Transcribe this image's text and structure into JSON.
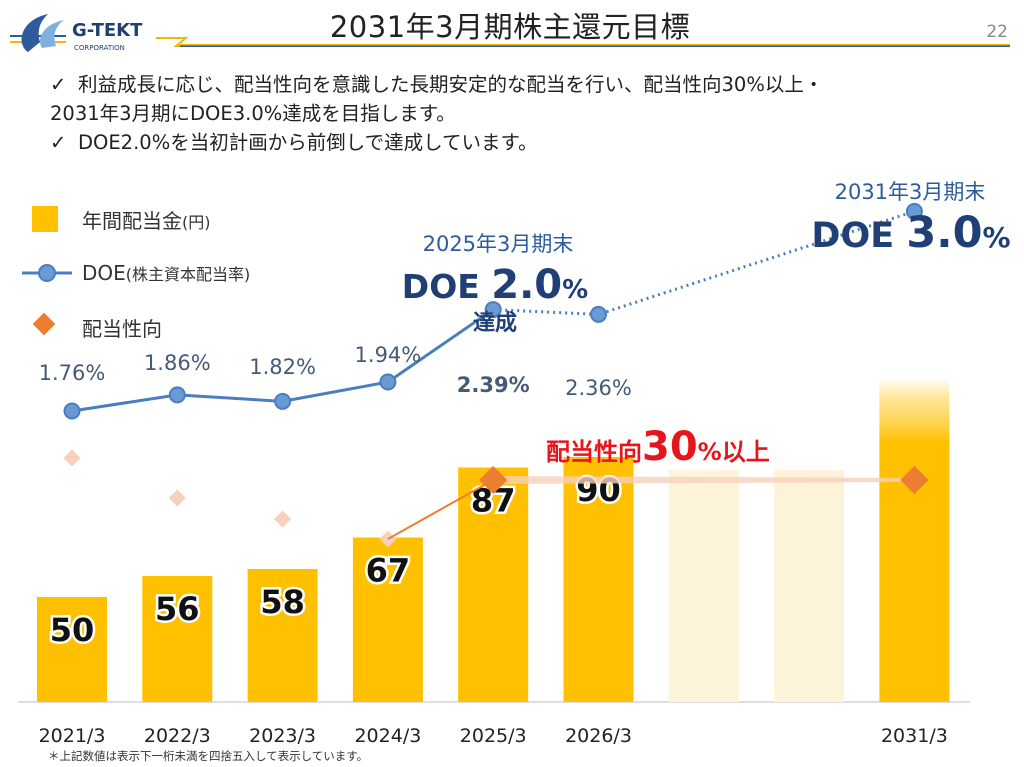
{
  "page": {
    "title": "2031年3月期株主還元目標",
    "page_number": "22",
    "logo_text": "G-TEKT",
    "logo_subtext": "CORPORATION"
  },
  "bullets": [
    "利益成長に応じ、配当性向を意識した長期安定的な配当を行い、配当性向30%以上・",
    "2031年3月期にDOE3.0%達成を目指します。",
    "DOE2.0%を当初計画から前倒しで達成しています。"
  ],
  "bullet_check": "✓",
  "legend": {
    "dividend": "年間配当金",
    "dividend_unit": "(円)",
    "doe": "DOE",
    "doe_note": "(株主資本配当率)",
    "payout": "配当性向"
  },
  "annotations": {
    "fy2025_date": "2025年3月期末",
    "fy2025_doe_prefix": "DOE ",
    "fy2025_doe_value": "2.0",
    "fy2025_doe_unit": "%",
    "fy2025_achieved": "達成",
    "fy2031_date": "2031年3月期末",
    "fy2031_doe_prefix": "DOE ",
    "fy2031_doe_value": "3.0",
    "fy2031_doe_unit": "%",
    "payout_prefix": "配当性向",
    "payout_value": "30",
    "payout_suffix": "%以上"
  },
  "footnote": "＊上記数値は表示下一桁未満を四捨五入して表示しています。",
  "colors": {
    "bar": "#ffc000",
    "bar_faint": "#fdf3d8",
    "doe_line": "#4a7ebf",
    "doe_marker": "#6a9ad3",
    "payout": "#ed7d31",
    "payout_faint": "#f8d0bb",
    "payout_text": "#e8141b",
    "title_rule_1": "#f2b705",
    "title_rule_2": "#2d5c9c"
  },
  "chart_data": {
    "type": "bar",
    "categories": [
      "2021/3",
      "2022/3",
      "2023/3",
      "2024/3",
      "2025/3",
      "2026/3",
      "",
      "",
      "2031/3"
    ],
    "series": [
      {
        "name": "年間配当金",
        "type": "bar",
        "values": [
          50,
          56,
          58,
          67,
          87,
          90,
          null,
          null,
          null
        ],
        "labels": [
          "50",
          "56",
          "58",
          "67",
          "87",
          "90",
          "",
          "",
          ""
        ]
      },
      {
        "name": "DOE",
        "type": "line",
        "values": [
          1.76,
          1.86,
          1.82,
          1.94,
          2.39,
          2.36,
          null,
          null,
          3.0
        ],
        "labels": [
          "1.76%",
          "1.86%",
          "1.82%",
          "1.94%",
          "2.39%",
          "2.36%",
          "",
          "",
          ""
        ],
        "dotted_from_index": 4
      },
      {
        "name": "配当性向",
        "type": "marker",
        "values": [
          null,
          null,
          null,
          null,
          30,
          null,
          null,
          null,
          30
        ]
      }
    ],
    "placeholder_bars": [
      6,
      7
    ],
    "target_bar_index": 8,
    "xlabel": "",
    "ylabel": ""
  }
}
